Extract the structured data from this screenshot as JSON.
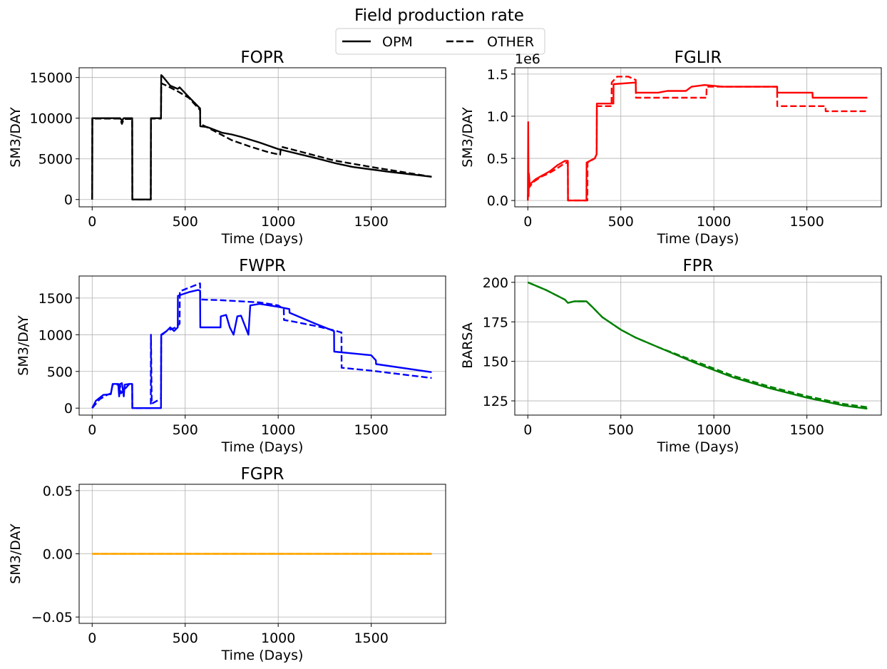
{
  "figure": {
    "title": "Field production rate",
    "legend": {
      "placement": "upper-center",
      "entries": [
        {
          "label": "OPM",
          "style": "solid"
        },
        {
          "label": "OTHER",
          "style": "dashed"
        }
      ]
    }
  },
  "chart_data": [
    {
      "id": "fopr",
      "type": "line",
      "title": "FOPR",
      "xlabel": "Time (Days)",
      "ylabel": "SM3/DAY",
      "xlim": [
        -70,
        1900
      ],
      "ylim": [
        -900,
        16200
      ],
      "xticks": [
        0,
        500,
        1000,
        1500
      ],
      "yticks": [
        0,
        5000,
        10000,
        15000
      ],
      "ytick_labels": [
        "0",
        "5000",
        "10000",
        "15000"
      ],
      "offset_text": "",
      "grid": true,
      "color": "#000000",
      "series": [
        {
          "name": "OPM",
          "style": "solid",
          "x": [
            0,
            1,
            150,
            160,
            170,
            215,
            216,
            315,
            316,
            370,
            371,
            380,
            420,
            460,
            470,
            520,
            580,
            581,
            620,
            700,
            750,
            800,
            900,
            1000,
            1200,
            1300,
            1400,
            1600,
            1825
          ],
          "y": [
            0,
            10000,
            10000,
            9700,
            10000,
            10000,
            0,
            0,
            10000,
            10000,
            15300,
            15100,
            14000,
            13600,
            13800,
            12600,
            11200,
            9000,
            8900,
            8200,
            8000,
            7700,
            7000,
            6200,
            5100,
            4500,
            4000,
            3400,
            2800
          ]
        },
        {
          "name": "OTHER",
          "style": "dashed",
          "x": [
            0,
            1,
            10,
            150,
            160,
            170,
            210,
            215,
            216,
            315,
            316,
            370,
            371,
            400,
            460,
            520,
            580,
            581,
            650,
            750,
            850,
            950,
            1010,
            1015,
            1100,
            1300,
            1500,
            1825
          ],
          "y": [
            0,
            9950,
            9950,
            9950,
            9300,
            9900,
            9900,
            9900,
            0,
            0,
            9950,
            9950,
            14300,
            14000,
            13300,
            12500,
            11000,
            9300,
            8500,
            7300,
            6500,
            5800,
            5500,
            6500,
            6000,
            4800,
            4000,
            2800
          ]
        }
      ]
    },
    {
      "id": "fglir",
      "type": "line",
      "title": "FGLIR",
      "xlabel": "Time (Days)",
      "ylabel": "SM3/DAY",
      "xlim": [
        -70,
        1900
      ],
      "ylim": [
        -0.075,
        1.575
      ],
      "xticks": [
        0,
        500,
        1000,
        1500
      ],
      "yticks": [
        0,
        0.5,
        1.0,
        1.5
      ],
      "ytick_labels": [
        "0.0",
        "0.5",
        "1.0",
        "1.5"
      ],
      "offset_text": "1e6",
      "grid": true,
      "color": "#ff0000",
      "series": [
        {
          "name": "OPM",
          "style": "solid",
          "x": [
            0,
            2,
            4,
            6,
            10,
            15,
            40,
            80,
            120,
            160,
            200,
            215,
            216,
            315,
            316,
            360,
            370,
            371,
            450,
            460,
            461,
            580,
            581,
            700,
            750,
            850,
            880,
            950,
            1050,
            1300,
            1340,
            1341,
            1530,
            1531,
            1825
          ],
          "y": [
            0.0,
            0.93,
            0.05,
            0.32,
            0.18,
            0.2,
            0.25,
            0.3,
            0.35,
            0.42,
            0.47,
            0.47,
            0.0,
            0.0,
            0.45,
            0.5,
            0.55,
            1.15,
            1.15,
            1.15,
            1.38,
            1.4,
            1.28,
            1.28,
            1.3,
            1.3,
            1.35,
            1.37,
            1.35,
            1.35,
            1.35,
            1.28,
            1.28,
            1.22,
            1.22
          ]
        },
        {
          "name": "OTHER",
          "style": "dashed",
          "x": [
            0,
            3,
            5,
            30,
            70,
            110,
            150,
            190,
            210,
            215,
            216,
            320,
            321,
            360,
            370,
            371,
            450,
            451,
            480,
            540,
            580,
            581,
            720,
            960,
            961,
            1050,
            1340,
            1341,
            1600,
            1601,
            1825
          ],
          "y": [
            0.0,
            0.25,
            0.15,
            0.22,
            0.28,
            0.32,
            0.37,
            0.43,
            0.45,
            0.45,
            0.0,
            0.0,
            0.45,
            0.5,
            0.55,
            1.12,
            1.12,
            1.4,
            1.47,
            1.47,
            1.43,
            1.22,
            1.22,
            1.22,
            1.35,
            1.35,
            1.35,
            1.12,
            1.12,
            1.06,
            1.06
          ]
        }
      ]
    },
    {
      "id": "fwpr",
      "type": "line",
      "title": "FWPR",
      "xlabel": "Time (Days)",
      "ylabel": "SM3/DAY",
      "xlim": [
        -70,
        1900
      ],
      "ylim": [
        -95,
        1800
      ],
      "xticks": [
        0,
        500,
        1000,
        1500
      ],
      "yticks": [
        0,
        500,
        1000,
        1500
      ],
      "ytick_labels": [
        "0",
        "500",
        "1000",
        "1500"
      ],
      "offset_text": "",
      "grid": true,
      "color": "#0000ff",
      "series": [
        {
          "name": "OPM",
          "style": "solid",
          "x": [
            0,
            20,
            60,
            100,
            110,
            140,
            145,
            150,
            160,
            170,
            175,
            200,
            215,
            216,
            315,
            370,
            371,
            400,
            420,
            440,
            460,
            461,
            520,
            570,
            580,
            581,
            660,
            690,
            691,
            720,
            740,
            760,
            780,
            800,
            840,
            850,
            851,
            900,
            1000,
            1060,
            1061,
            1200,
            1300,
            1301,
            1500,
            1525,
            1526,
            1825
          ],
          "y": [
            0,
            100,
            180,
            190,
            330,
            330,
            160,
            330,
            340,
            160,
            320,
            330,
            330,
            0,
            0,
            0,
            1000,
            1050,
            1100,
            1050,
            1100,
            1530,
            1580,
            1610,
            1600,
            1100,
            1100,
            1100,
            1250,
            1270,
            1100,
            1000,
            1250,
            1260,
            1000,
            1400,
            1400,
            1420,
            1380,
            1350,
            1300,
            1150,
            1050,
            770,
            720,
            650,
            600,
            490
          ]
        },
        {
          "name": "OTHER",
          "style": "dashed",
          "x": [
            0,
            40,
            80,
            100,
            110,
            150,
            155,
            200,
            210,
            215,
            216,
            315,
            316,
            320,
            370,
            371,
            400,
            450,
            470,
            471,
            500,
            580,
            581,
            700,
            900,
            1000,
            1030,
            1031,
            1080,
            1200,
            1300,
            1340,
            1341,
            1500,
            1825
          ],
          "y": [
            0,
            120,
            180,
            200,
            320,
            320,
            200,
            330,
            330,
            330,
            0,
            0,
            1000,
            60,
            130,
            990,
            1050,
            1100,
            1150,
            1590,
            1620,
            1700,
            1480,
            1470,
            1440,
            1400,
            1350,
            1200,
            1180,
            1120,
            1060,
            1030,
            550,
            510,
            410
          ]
        }
      ]
    },
    {
      "id": "fpr",
      "type": "line",
      "title": "FPR",
      "xlabel": "Time (Days)",
      "ylabel": "BARSA",
      "xlim": [
        -70,
        1900
      ],
      "ylim": [
        116,
        204
      ],
      "xticks": [
        0,
        500,
        1000,
        1500
      ],
      "yticks": [
        125,
        150,
        175,
        200
      ],
      "ytick_labels": [
        "125",
        "150",
        "175",
        "200"
      ],
      "offset_text": "",
      "grid": true,
      "color": "#008000",
      "series": [
        {
          "name": "OPM",
          "style": "solid",
          "x": [
            0,
            100,
            200,
            215,
            250,
            315,
            350,
            400,
            500,
            580,
            700,
            900,
            1100,
            1300,
            1500,
            1700,
            1825
          ],
          "y": [
            200,
            195,
            189,
            187,
            188,
            188,
            184,
            178,
            170,
            165,
            159,
            149,
            140,
            133,
            127,
            122,
            120
          ]
        },
        {
          "name": "OTHER",
          "style": "dashed",
          "x": [
            0,
            100,
            200,
            215,
            250,
            315,
            350,
            400,
            500,
            580,
            700,
            900,
            1100,
            1300,
            1500,
            1700,
            1825
          ],
          "y": [
            200,
            195,
            189,
            187,
            188,
            188,
            184,
            178,
            170,
            165,
            159,
            150,
            141,
            134,
            128,
            123,
            121
          ]
        }
      ]
    },
    {
      "id": "fgpr",
      "type": "line",
      "title": "FGPR",
      "xlabel": "Time (Days)",
      "ylabel": "SM3/DAY",
      "xlim": [
        -70,
        1900
      ],
      "ylim": [
        -0.055,
        0.055
      ],
      "xticks": [
        0,
        500,
        1000,
        1500
      ],
      "yticks": [
        -0.05,
        0.0,
        0.05
      ],
      "ytick_labels": [
        "−0.05",
        "0.00",
        "0.05"
      ],
      "offset_text": "",
      "grid": true,
      "color": "#ffa500",
      "series": [
        {
          "name": "OPM",
          "style": "solid",
          "x": [
            0,
            1825
          ],
          "y": [
            0,
            0
          ]
        },
        {
          "name": "OTHER",
          "style": "dashed",
          "x": [
            0,
            1825
          ],
          "y": [
            0,
            0
          ]
        }
      ]
    }
  ]
}
